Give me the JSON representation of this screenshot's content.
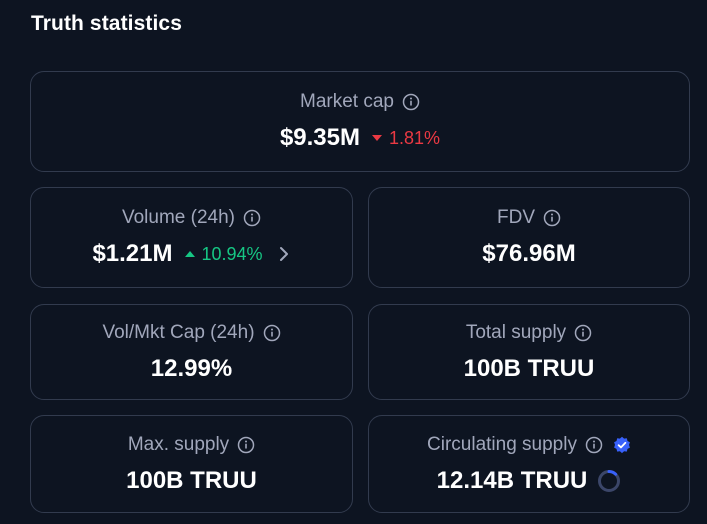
{
  "section": {
    "title": "Truth statistics"
  },
  "market_cap": {
    "label": "Market cap",
    "value": "$9.35M",
    "change": "1.81%",
    "direction": "down"
  },
  "volume": {
    "label": "Volume (24h)",
    "value": "$1.21M",
    "change": "10.94%",
    "direction": "up"
  },
  "fdv": {
    "label": "FDV",
    "value": "$76.96M"
  },
  "vol_mkt_cap": {
    "label": "Vol/Mkt Cap (24h)",
    "value": "12.99%"
  },
  "total_supply": {
    "label": "Total supply",
    "value": "100B TRUU"
  },
  "max_supply": {
    "label": "Max. supply",
    "value": "100B TRUU"
  },
  "circulating_supply": {
    "label": "Circulating supply",
    "value": "12.14B TRUU",
    "progress": 0.1214
  },
  "colors": {
    "down": "#ea3943",
    "up": "#16c784",
    "accent": "#3861fb"
  }
}
